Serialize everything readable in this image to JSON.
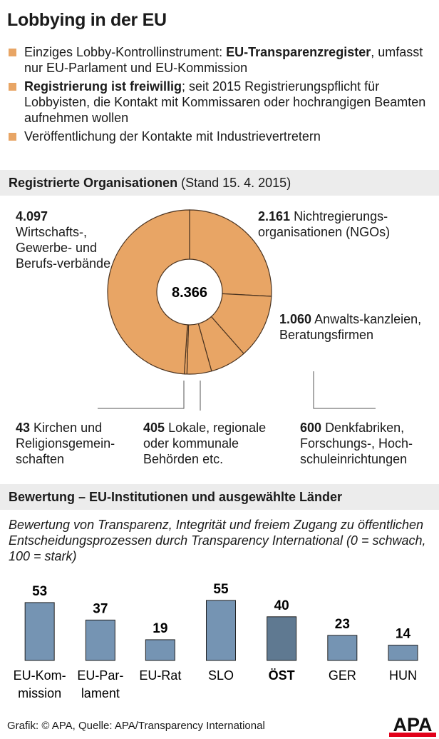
{
  "title": "Lobbying in der EU",
  "bullets": [
    {
      "pre": "Einziges Lobby-Kontrollinstrument: ",
      "bold": "EU-Transparenzregister",
      "post": ", umfasst nur EU-Parlament und EU-Kommission"
    },
    {
      "pre": "",
      "bold": "Registrierung ist freiwillig",
      "post": "; seit 2015 Registrierungspflicht für Lobbyisten, die Kontakt mit Kommissaren oder hochrangigen Beamten aufnehmen wollen"
    },
    {
      "pre": "Veröffentlichung der Kontakte mit Industrievertretern",
      "bold": "",
      "post": ""
    }
  ],
  "colors": {
    "accent": "#e8a565",
    "bar": "#7594b3",
    "bar_highlight": "#5f7991",
    "band": "#ececec",
    "apa_red": "#e2001a"
  },
  "chart_data": [
    {
      "type": "pie",
      "title": "Registrierte Organisationen",
      "subtitle": "(Stand 15. 4. 2015)",
      "total": "8.366",
      "slices": [
        {
          "value": 2161,
          "value_label": "2.161",
          "label": "Nichtregierungs-organisationen (NGOs)"
        },
        {
          "value": 1060,
          "value_label": "1.060",
          "label": "Anwalts-kanzleien, Beratungsfirmen"
        },
        {
          "value": 600,
          "value_label": "600",
          "label": "Denkfabriken, Forschungs-, Hoch-schuleinrichtungen"
        },
        {
          "value": 405,
          "value_label": "405",
          "label": "Lokale, regionale oder kommunale Behörden etc."
        },
        {
          "value": 43,
          "value_label": "43",
          "label": "Kirchen und Religionsgemein-schaften"
        },
        {
          "value": 4097,
          "value_label": "4.097",
          "label": "Wirtschafts-, Gewerbe- und Berufs-verbände"
        }
      ]
    },
    {
      "type": "bar",
      "title": "Bewertung – EU-Institutionen und ausgewählte Länder",
      "subtitle": "Bewertung von Transparenz, Integrität und freiem Zugang zu öffentlichen Entscheidungsprozessen durch Transparency International (0 = schwach, 100 = stark)",
      "categories": [
        "EU-Kom-\nmission",
        "EU-Par-\nlament",
        "EU-Rat",
        "SLO",
        "ÖST",
        "GER",
        "HUN"
      ],
      "values": [
        53,
        37,
        19,
        55,
        40,
        23,
        14
      ],
      "highlight": "ÖST",
      "ylim": [
        0,
        100
      ],
      "grid": false
    }
  ],
  "footer": "Grafik: © APA, Quelle: APA/Transparency International",
  "logo": "APA"
}
